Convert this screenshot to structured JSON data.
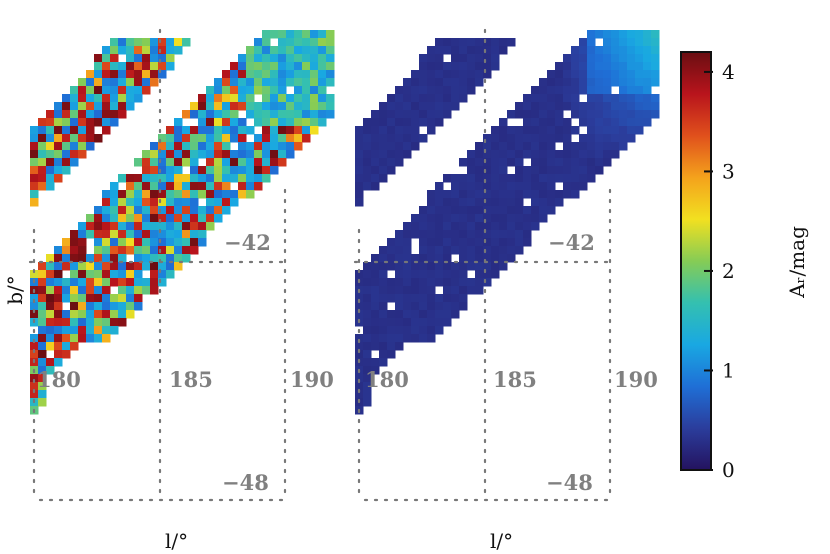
{
  "chart_data": {
    "type": "heatmap",
    "x_ticks": [
      "180",
      "185",
      "190"
    ],
    "y_ticks": [
      "−42",
      "−48"
    ],
    "xlabel": "l/°",
    "ylabel": "b/°",
    "colorbar": {
      "label": "Aᵣ/mag",
      "range": [
        0,
        4.2
      ],
      "ticks": [
        "0",
        "1",
        "2",
        "3",
        "4"
      ],
      "colormap": [
        "#24135f",
        "#2b3d9c",
        "#1f6fd6",
        "#19a8e2",
        "#34c0b0",
        "#86cc55",
        "#f2e020",
        "#f4a21c",
        "#e0501c",
        "#b8141c",
        "#6a0e12"
      ]
    },
    "panels": [
      {
        "name": "",
        "typical_value_range": [
          0.2,
          4.2
        ],
        "regions": [
          {
            "l_range": [
              178.0,
              182.0
            ],
            "b_range": [
              -39.0,
              -36.0
            ]
          },
          {
            "l_range": [
              178.0,
              190.0
            ],
            "b_range": [
              -48.5,
              -36.0
            ]
          }
        ]
      },
      {
        "name": "",
        "typical_value_range": [
          0.0,
          1.4
        ],
        "regions": [
          {
            "l_range": [
              178.0,
              182.0
            ],
            "b_range": [
              -39.0,
              -36.0
            ]
          },
          {
            "l_range": [
              178.0,
              190.0
            ],
            "b_range": [
              -48.5,
              -36.0
            ]
          }
        ]
      }
    ]
  }
}
